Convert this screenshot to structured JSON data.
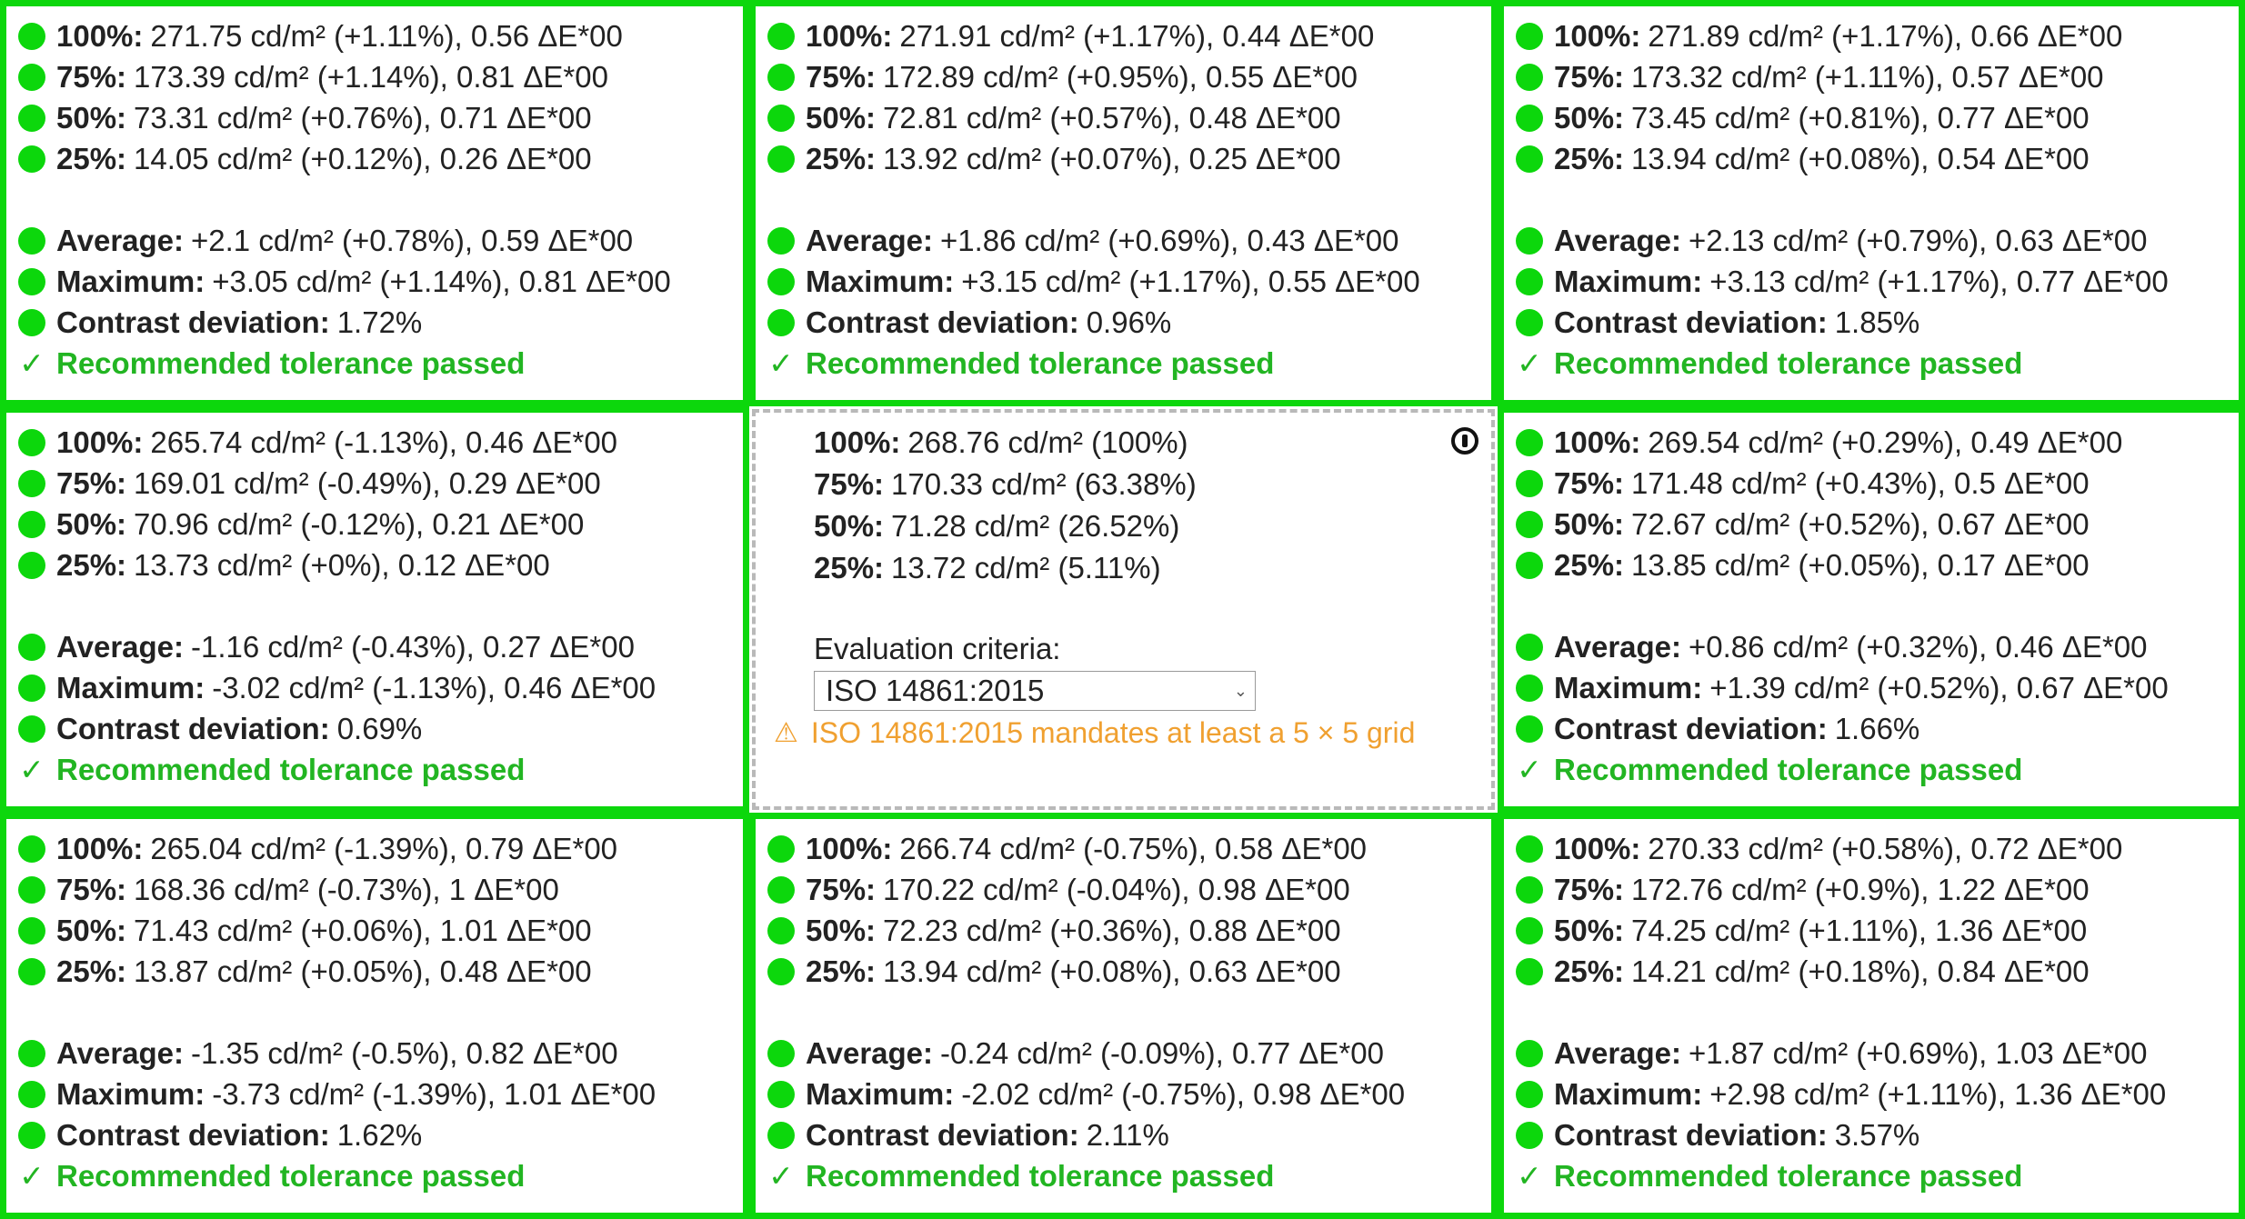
{
  "colors": {
    "pass_green": "#0cd70c",
    "pass_text": "#22b522",
    "warning": "#f0a030",
    "reference_border": "#b9b9b9"
  },
  "cells": [
    {
      "rows": [
        {
          "label": "100%:",
          "value": "271.75 cd/m² (+1.11%), 0.56 ΔE*00"
        },
        {
          "label": "75%:",
          "value": "173.39 cd/m² (+1.14%), 0.81 ΔE*00"
        },
        {
          "label": "50%:",
          "value": "73.31 cd/m² (+0.76%), 0.71 ΔE*00"
        },
        {
          "label": "25%:",
          "value": "14.05 cd/m² (+0.12%), 0.26 ΔE*00"
        }
      ],
      "summary": [
        {
          "label": "Average:",
          "value": "+2.1 cd/m² (+0.78%), 0.59 ΔE*00"
        },
        {
          "label": "Maximum:",
          "value": "+3.05 cd/m² (+1.14%), 0.81 ΔE*00"
        },
        {
          "label": "Contrast deviation:",
          "value": "1.72%"
        }
      ],
      "check": "✓",
      "result": "Recommended tolerance passed"
    },
    {
      "rows": [
        {
          "label": "100%:",
          "value": "271.91 cd/m² (+1.17%), 0.44 ΔE*00"
        },
        {
          "label": "75%:",
          "value": "172.89 cd/m² (+0.95%), 0.55 ΔE*00"
        },
        {
          "label": "50%:",
          "value": "72.81 cd/m² (+0.57%), 0.48 ΔE*00"
        },
        {
          "label": "25%:",
          "value": "13.92 cd/m² (+0.07%), 0.25 ΔE*00"
        }
      ],
      "summary": [
        {
          "label": "Average:",
          "value": "+1.86 cd/m² (+0.69%), 0.43 ΔE*00"
        },
        {
          "label": "Maximum:",
          "value": "+3.15 cd/m² (+1.17%), 0.55 ΔE*00"
        },
        {
          "label": "Contrast deviation:",
          "value": "0.96%"
        }
      ],
      "check": "✓",
      "result": "Recommended tolerance passed"
    },
    {
      "rows": [
        {
          "label": "100%:",
          "value": "271.89 cd/m² (+1.17%), 0.66 ΔE*00"
        },
        {
          "label": "75%:",
          "value": "173.32 cd/m² (+1.11%), 0.57 ΔE*00"
        },
        {
          "label": "50%:",
          "value": "73.45 cd/m² (+0.81%), 0.77 ΔE*00"
        },
        {
          "label": "25%:",
          "value": "13.94 cd/m² (+0.08%), 0.54 ΔE*00"
        }
      ],
      "summary": [
        {
          "label": "Average:",
          "value": "+2.13 cd/m² (+0.79%), 0.63 ΔE*00"
        },
        {
          "label": "Maximum:",
          "value": "+3.13 cd/m² (+1.17%), 0.77 ΔE*00"
        },
        {
          "label": "Contrast deviation:",
          "value": "1.85%"
        }
      ],
      "check": "✓",
      "result": "Recommended tolerance passed"
    },
    {
      "rows": [
        {
          "label": "100%:",
          "value": "265.74 cd/m² (-1.13%), 0.46 ΔE*00"
        },
        {
          "label": "75%:",
          "value": "169.01 cd/m² (-0.49%), 0.29 ΔE*00"
        },
        {
          "label": "50%:",
          "value": "70.96 cd/m² (-0.12%), 0.21 ΔE*00"
        },
        {
          "label": "25%:",
          "value": "13.73 cd/m² (+0%), 0.12 ΔE*00"
        }
      ],
      "summary": [
        {
          "label": "Average:",
          "value": "-1.16 cd/m² (-0.43%), 0.27 ΔE*00"
        },
        {
          "label": "Maximum:",
          "value": "-3.02 cd/m² (-1.13%), 0.46 ΔE*00"
        },
        {
          "label": "Contrast deviation:",
          "value": "0.69%"
        }
      ],
      "check": "✓",
      "result": "Recommended tolerance passed"
    },
    {
      "reference": true,
      "rows": [
        {
          "label": "100%:",
          "value": "268.76 cd/m² (100%)"
        },
        {
          "label": "75%:",
          "value": "170.33 cd/m² (63.38%)"
        },
        {
          "label": "50%:",
          "value": "71.28 cd/m² (26.52%)"
        },
        {
          "label": "25%:",
          "value": "13.72 cd/m² (5.11%)"
        }
      ],
      "criteria_label": "Evaluation criteria:",
      "criteria_value": "ISO 14861:2015",
      "caret": "⌄",
      "warning_icon": "⚠",
      "warning": "ISO 14861:2015 mandates at least a 5 × 5 grid"
    },
    {
      "rows": [
        {
          "label": "100%:",
          "value": "269.54 cd/m² (+0.29%), 0.49 ΔE*00"
        },
        {
          "label": "75%:",
          "value": "171.48 cd/m² (+0.43%), 0.5 ΔE*00"
        },
        {
          "label": "50%:",
          "value": "72.67 cd/m² (+0.52%), 0.67 ΔE*00"
        },
        {
          "label": "25%:",
          "value": "13.85 cd/m² (+0.05%), 0.17 ΔE*00"
        }
      ],
      "summary": [
        {
          "label": "Average:",
          "value": "+0.86 cd/m² (+0.32%), 0.46 ΔE*00"
        },
        {
          "label": "Maximum:",
          "value": "+1.39 cd/m² (+0.52%), 0.67 ΔE*00"
        },
        {
          "label": "Contrast deviation:",
          "value": "1.66%"
        }
      ],
      "check": "✓",
      "result": "Recommended tolerance passed"
    },
    {
      "rows": [
        {
          "label": "100%:",
          "value": "265.04 cd/m² (-1.39%), 0.79 ΔE*00"
        },
        {
          "label": "75%:",
          "value": "168.36 cd/m² (-0.73%), 1 ΔE*00"
        },
        {
          "label": "50%:",
          "value": "71.43 cd/m² (+0.06%), 1.01 ΔE*00"
        },
        {
          "label": "25%:",
          "value": "13.87 cd/m² (+0.05%), 0.48 ΔE*00"
        }
      ],
      "summary": [
        {
          "label": "Average:",
          "value": "-1.35 cd/m² (-0.5%), 0.82 ΔE*00"
        },
        {
          "label": "Maximum:",
          "value": "-3.73 cd/m² (-1.39%), 1.01 ΔE*00"
        },
        {
          "label": "Contrast deviation:",
          "value": "1.62%"
        }
      ],
      "check": "✓",
      "result": "Recommended tolerance passed"
    },
    {
      "rows": [
        {
          "label": "100%:",
          "value": "266.74 cd/m² (-0.75%), 0.58 ΔE*00"
        },
        {
          "label": "75%:",
          "value": "170.22 cd/m² (-0.04%), 0.98 ΔE*00"
        },
        {
          "label": "50%:",
          "value": "72.23 cd/m² (+0.36%), 0.88 ΔE*00"
        },
        {
          "label": "25%:",
          "value": "13.94 cd/m² (+0.08%), 0.63 ΔE*00"
        }
      ],
      "summary": [
        {
          "label": "Average:",
          "value": "-0.24 cd/m² (-0.09%), 0.77 ΔE*00"
        },
        {
          "label": "Maximum:",
          "value": "-2.02 cd/m² (-0.75%), 0.98 ΔE*00"
        },
        {
          "label": "Contrast deviation:",
          "value": "2.11%"
        }
      ],
      "check": "✓",
      "result": "Recommended tolerance passed"
    },
    {
      "rows": [
        {
          "label": "100%:",
          "value": "270.33 cd/m² (+0.58%), 0.72 ΔE*00"
        },
        {
          "label": "75%:",
          "value": "172.76 cd/m² (+0.9%), 1.22 ΔE*00"
        },
        {
          "label": "50%:",
          "value": "74.25 cd/m² (+1.11%), 1.36 ΔE*00"
        },
        {
          "label": "25%:",
          "value": "14.21 cd/m² (+0.18%), 0.84 ΔE*00"
        }
      ],
      "summary": [
        {
          "label": "Average:",
          "value": "+1.87 cd/m² (+0.69%), 1.03 ΔE*00"
        },
        {
          "label": "Maximum:",
          "value": "+2.98 cd/m² (+1.11%), 1.36 ΔE*00"
        },
        {
          "label": "Contrast deviation:",
          "value": "3.57%"
        }
      ],
      "check": "✓",
      "result": "Recommended tolerance passed"
    }
  ]
}
